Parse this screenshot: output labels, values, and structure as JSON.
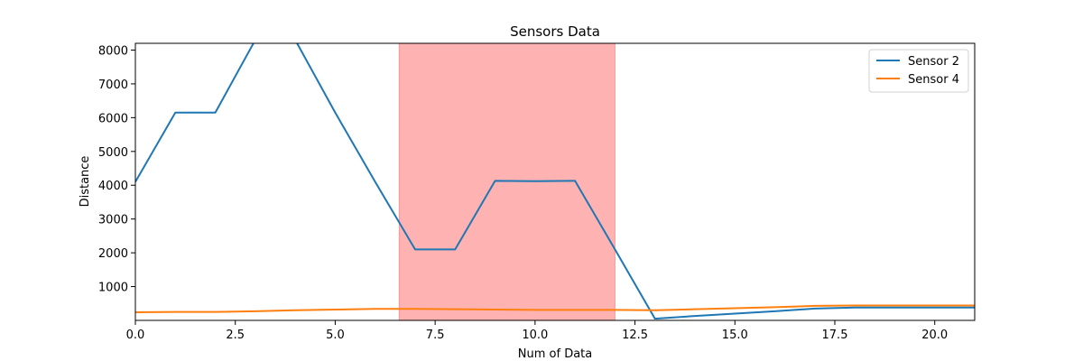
{
  "chart_data": {
    "type": "line",
    "title": "Sensors Data",
    "xlabel": "Num of Data",
    "ylabel": "Distance",
    "xlim": [
      0,
      21
    ],
    "ylim": [
      0,
      8200
    ],
    "x_ticks": [
      0,
      2.5,
      5,
      7.5,
      10,
      12.5,
      15,
      17.5,
      20
    ],
    "x_tick_labels": [
      "0.0",
      "2.5",
      "5.0",
      "7.5",
      "10.0",
      "12.5",
      "15.0",
      "17.5",
      "20.0"
    ],
    "y_ticks": [
      1000,
      2000,
      3000,
      4000,
      5000,
      6000,
      7000,
      8000
    ],
    "y_tick_labels": [
      "1000",
      "2000",
      "3000",
      "4000",
      "5000",
      "6000",
      "7000",
      "8000"
    ],
    "grid": false,
    "legend_position": "top-right",
    "highlight_span": {
      "x_start": 6.6,
      "x_end": 12.0,
      "color": "#ff0000",
      "opacity": 0.3
    },
    "x": [
      0,
      1,
      2,
      3,
      4,
      5,
      6,
      7,
      8,
      9,
      10,
      11,
      12,
      13,
      14,
      15,
      16,
      17,
      18,
      19,
      20,
      21
    ],
    "series": [
      {
        "name": "Sensor 2",
        "color": "#1f77b4",
        "values": [
          4100,
          6150,
          6150,
          8300,
          8300,
          6150,
          4100,
          2100,
          2100,
          4130,
          4120,
          4130,
          2100,
          50,
          130,
          200,
          270,
          350,
          380,
          380,
          380,
          380
        ]
      },
      {
        "name": "Sensor 4",
        "color": "#ff7f0e",
        "values": [
          240,
          250,
          250,
          270,
          300,
          320,
          340,
          340,
          330,
          320,
          310,
          310,
          310,
          300,
          330,
          360,
          390,
          430,
          440,
          440,
          440,
          440
        ]
      }
    ]
  }
}
